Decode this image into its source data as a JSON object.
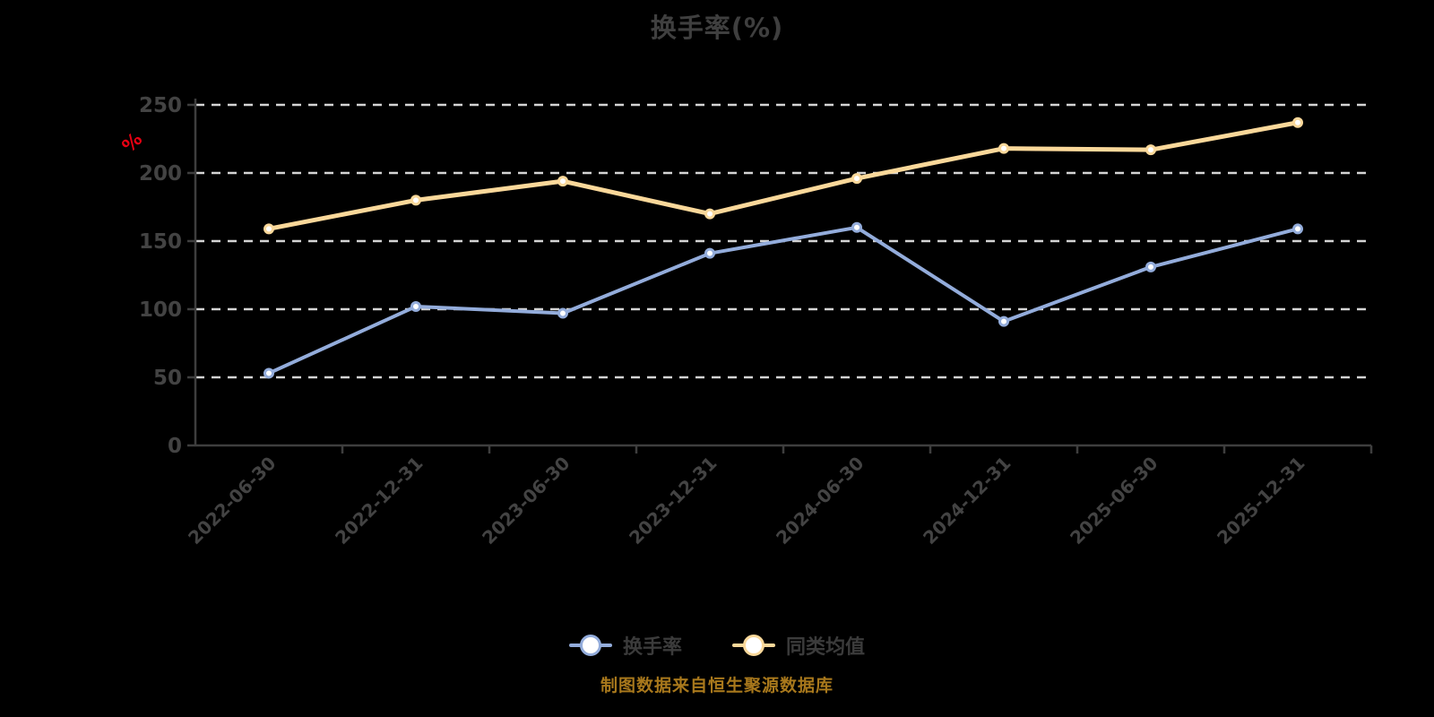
{
  "title": "换手率(%)",
  "footer": "制图数据来自恒生聚源数据库",
  "colors": {
    "background": "#000000",
    "grid": "#d4d4d4",
    "axis": "#3e3e3e",
    "tick_text": "#434343",
    "title_text": "#3f3f3f",
    "unit_text": "#e60012",
    "footer_text": "#a8781c",
    "marker_fill": "#ffffff"
  },
  "chart_data": {
    "type": "line",
    "title": "换手率(%)",
    "categories": [
      "2022-06-30",
      "2022-12-31",
      "2023-06-30",
      "2023-12-31",
      "2024-06-30",
      "2024-12-31",
      "2025-06-30",
      "2025-12-31"
    ],
    "series": [
      {
        "name": "换手率",
        "color": "#93acdb",
        "line_width": 4,
        "values": [
          53,
          102,
          97,
          141,
          160,
          91,
          131,
          159
        ]
      },
      {
        "name": "同类均值",
        "color": "#fad89a",
        "line_width": 5,
        "values": [
          159,
          180,
          194,
          170,
          196,
          218,
          217,
          237
        ]
      }
    ],
    "xlabel": "",
    "ylabel": "%",
    "ylim": [
      0,
      250
    ],
    "yticks": [
      0,
      50,
      100,
      150,
      200,
      250
    ],
    "grid": "horizontal-dashed",
    "legend_position": "bottom",
    "marker": "circle-white-fill",
    "x_label_rotation_deg": -45
  }
}
